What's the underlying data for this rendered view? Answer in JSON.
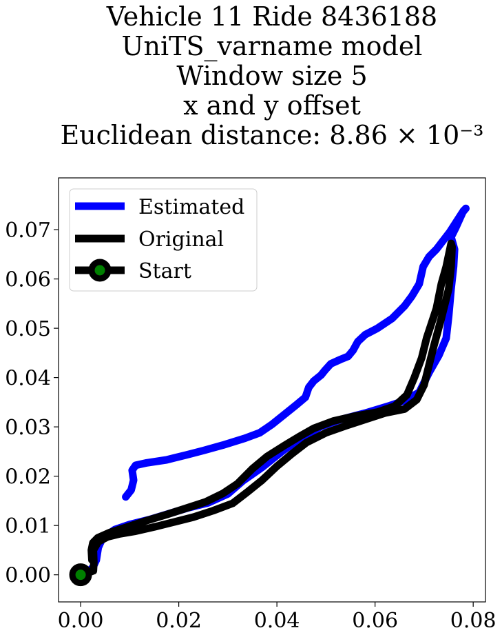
{
  "chart_data": {
    "type": "line",
    "title_lines": [
      "Vehicle 11 Ride 8436188",
      "UniTS_varname model",
      "Window size 5",
      "x and y offset",
      "Euclidean distance: 8.86 × 10⁻³"
    ],
    "xlabel": "",
    "ylabel": "",
    "xlim": [
      -0.0045,
      0.0825
    ],
    "ylim": [
      -0.0055,
      0.0805
    ],
    "xticks": [
      0.0,
      0.02,
      0.04,
      0.06,
      0.08
    ],
    "xtick_labels": [
      "0.00",
      "0.02",
      "0.04",
      "0.06",
      "0.08"
    ],
    "yticks": [
      0.0,
      0.01,
      0.02,
      0.03,
      0.04,
      0.05,
      0.06,
      0.07
    ],
    "ytick_labels": [
      "0.00",
      "0.01",
      "0.02",
      "0.03",
      "0.04",
      "0.05",
      "0.06",
      "0.07"
    ],
    "grid": false,
    "legend_position": "upper-left",
    "series": [
      {
        "name": "Estimated",
        "color": "#0000ff",
        "points": [
          [
            0.0,
            0.0
          ],
          [
            0.0015,
            0.0006
          ],
          [
            0.0025,
            0.0015
          ],
          [
            0.0032,
            0.003
          ],
          [
            0.0036,
            0.0055
          ],
          [
            0.0045,
            0.0075
          ],
          [
            0.007,
            0.0092
          ],
          [
            0.01,
            0.0102
          ],
          [
            0.014,
            0.0112
          ],
          [
            0.018,
            0.0124
          ],
          [
            0.022,
            0.0136
          ],
          [
            0.026,
            0.0146
          ],
          [
            0.03,
            0.0164
          ],
          [
            0.033,
            0.019
          ],
          [
            0.037,
            0.0218
          ],
          [
            0.041,
            0.025
          ],
          [
            0.045,
            0.0278
          ],
          [
            0.049,
            0.0301
          ],
          [
            0.053,
            0.0315
          ],
          [
            0.058,
            0.0328
          ],
          [
            0.063,
            0.0343
          ],
          [
            0.066,
            0.0353
          ],
          [
            0.069,
            0.037
          ],
          [
            0.071,
            0.041
          ],
          [
            0.073,
            0.0445
          ],
          [
            0.0745,
            0.048
          ],
          [
            0.075,
            0.0525
          ],
          [
            0.0755,
            0.058
          ],
          [
            0.076,
            0.0625
          ],
          [
            0.0762,
            0.066
          ],
          [
            0.0755,
            0.0685
          ],
          [
            0.0765,
            0.0705
          ],
          [
            0.078,
            0.0738
          ],
          [
            0.0785,
            0.0743
          ],
          [
            0.0778,
            0.0735
          ],
          [
            0.0752,
            0.0695
          ],
          [
            0.0725,
            0.066
          ],
          [
            0.071,
            0.0645
          ],
          [
            0.0698,
            0.0625
          ],
          [
            0.069,
            0.059
          ],
          [
            0.0675,
            0.0565
          ],
          [
            0.066,
            0.0545
          ],
          [
            0.0635,
            0.052
          ],
          [
            0.0605,
            0.05
          ],
          [
            0.058,
            0.0487
          ],
          [
            0.0565,
            0.0473
          ],
          [
            0.0555,
            0.0455
          ],
          [
            0.0545,
            0.0443
          ],
          [
            0.053,
            0.0437
          ],
          [
            0.051,
            0.0428
          ],
          [
            0.0498,
            0.0415
          ],
          [
            0.049,
            0.0405
          ],
          [
            0.0475,
            0.0393
          ],
          [
            0.0465,
            0.038
          ],
          [
            0.0458,
            0.036
          ],
          [
            0.044,
            0.0345
          ],
          [
            0.0415,
            0.0325
          ],
          [
            0.039,
            0.0305
          ],
          [
            0.0365,
            0.0288
          ],
          [
            0.0335,
            0.0277
          ],
          [
            0.029,
            0.0263
          ],
          [
            0.025,
            0.0252
          ],
          [
            0.0215,
            0.0243
          ],
          [
            0.0175,
            0.0233
          ],
          [
            0.0135,
            0.0227
          ],
          [
            0.0112,
            0.0222
          ],
          [
            0.0105,
            0.0212
          ],
          [
            0.0108,
            0.0192
          ],
          [
            0.0103,
            0.0172
          ],
          [
            0.0092,
            0.0158
          ]
        ]
      },
      {
        "name": "Original",
        "color": "#000000",
        "points": [
          [
            0.0,
            0.0
          ],
          [
            0.0015,
            0.0004
          ],
          [
            0.0026,
            0.0008
          ],
          [
            0.0027,
            0.0025
          ],
          [
            0.0026,
            0.005
          ],
          [
            0.0036,
            0.0067
          ],
          [
            0.0055,
            0.0077
          ],
          [
            0.008,
            0.0083
          ],
          [
            0.011,
            0.0088
          ],
          [
            0.015,
            0.0097
          ],
          [
            0.019,
            0.0107
          ],
          [
            0.023,
            0.0117
          ],
          [
            0.027,
            0.013
          ],
          [
            0.031,
            0.0145
          ],
          [
            0.034,
            0.0168
          ],
          [
            0.037,
            0.0192
          ],
          [
            0.04,
            0.022
          ],
          [
            0.043,
            0.0245
          ],
          [
            0.046,
            0.0268
          ],
          [
            0.05,
            0.0288
          ],
          [
            0.054,
            0.0302
          ],
          [
            0.058,
            0.0315
          ],
          [
            0.062,
            0.0328
          ],
          [
            0.066,
            0.0336
          ],
          [
            0.0685,
            0.0355
          ],
          [
            0.07,
            0.0385
          ],
          [
            0.071,
            0.0425
          ],
          [
            0.072,
            0.0465
          ],
          [
            0.0735,
            0.052
          ],
          [
            0.075,
            0.058
          ],
          [
            0.0755,
            0.0625
          ],
          [
            0.0757,
            0.0665
          ],
          [
            0.0755,
            0.0672
          ],
          [
            0.0745,
            0.0625
          ],
          [
            0.0735,
            0.059
          ],
          [
            0.073,
            0.0565
          ],
          [
            0.0725,
            0.054
          ],
          [
            0.0715,
            0.051
          ],
          [
            0.0705,
            0.048
          ],
          [
            0.0695,
            0.044
          ],
          [
            0.068,
            0.04
          ],
          [
            0.0665,
            0.0365
          ],
          [
            0.064,
            0.0342
          ],
          [
            0.0605,
            0.033
          ],
          [
            0.056,
            0.0322
          ],
          [
            0.0515,
            0.0312
          ],
          [
            0.0475,
            0.0297
          ],
          [
            0.0445,
            0.028
          ],
          [
            0.0415,
            0.0262
          ],
          [
            0.038,
            0.024
          ],
          [
            0.035,
            0.0215
          ],
          [
            0.032,
            0.0185
          ],
          [
            0.029,
            0.0165
          ],
          [
            0.0255,
            0.0148
          ],
          [
            0.0215,
            0.0135
          ],
          [
            0.0175,
            0.0122
          ],
          [
            0.0135,
            0.011
          ],
          [
            0.0095,
            0.0097
          ],
          [
            0.006,
            0.0086
          ],
          [
            0.0035,
            0.0075
          ],
          [
            0.0025,
            0.0065
          ],
          [
            0.0022,
            0.005
          ],
          [
            0.0023,
            0.003
          ]
        ]
      },
      {
        "name": "Start",
        "color": "#000000",
        "marker_face_color": "#008000",
        "points": [
          [
            0.0,
            0.0
          ]
        ]
      }
    ],
    "legend": [
      "Estimated",
      "Original",
      "Start"
    ]
  }
}
